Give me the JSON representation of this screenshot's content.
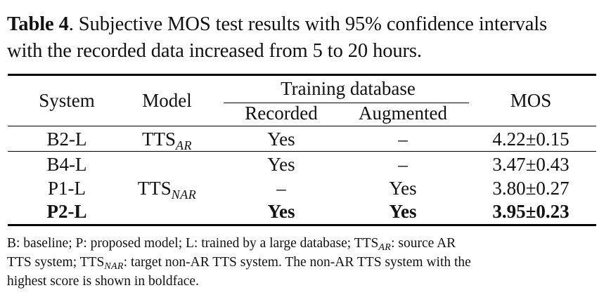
{
  "caption": {
    "label": "Table 4",
    "text_line1": ". Subjective MOS test results with 95% confidence intervals",
    "text_line2": "with the recorded data increased from 5 to 20 hours."
  },
  "table": {
    "headers": {
      "system": "System",
      "model": "Model",
      "training_database": "Training database",
      "recorded": "Recorded",
      "augmented": "Augmented",
      "mos": "MOS"
    },
    "models": {
      "ar_base": "TTS",
      "ar_sub": "AR",
      "nar_base": "TTS",
      "nar_sub": "NAR"
    },
    "rows": [
      {
        "system": "B2-L",
        "recorded": "Yes",
        "augmented": "–",
        "mos": "4.22±0.15",
        "bold": false
      },
      {
        "system": "B4-L",
        "recorded": "Yes",
        "augmented": "–",
        "mos": "3.47±0.43",
        "bold": false
      },
      {
        "system": "P1-L",
        "recorded": "–",
        "augmented": "Yes",
        "mos": "3.80±0.27",
        "bold": false
      },
      {
        "system": "P2-L",
        "recorded": "Yes",
        "augmented": "Yes",
        "mos": "3.95±0.23",
        "bold": true
      }
    ]
  },
  "footnote": {
    "part1": "B: baseline; P: proposed model; L: trained by a large database; TTS",
    "sub1": "AR",
    "part2": ": source AR",
    "part3": "TTS system; TTS",
    "sub2": "NAR",
    "part4": ": target non-AR TTS system. The non-AR TTS system with the",
    "part5": "highest score is shown in boldface."
  }
}
